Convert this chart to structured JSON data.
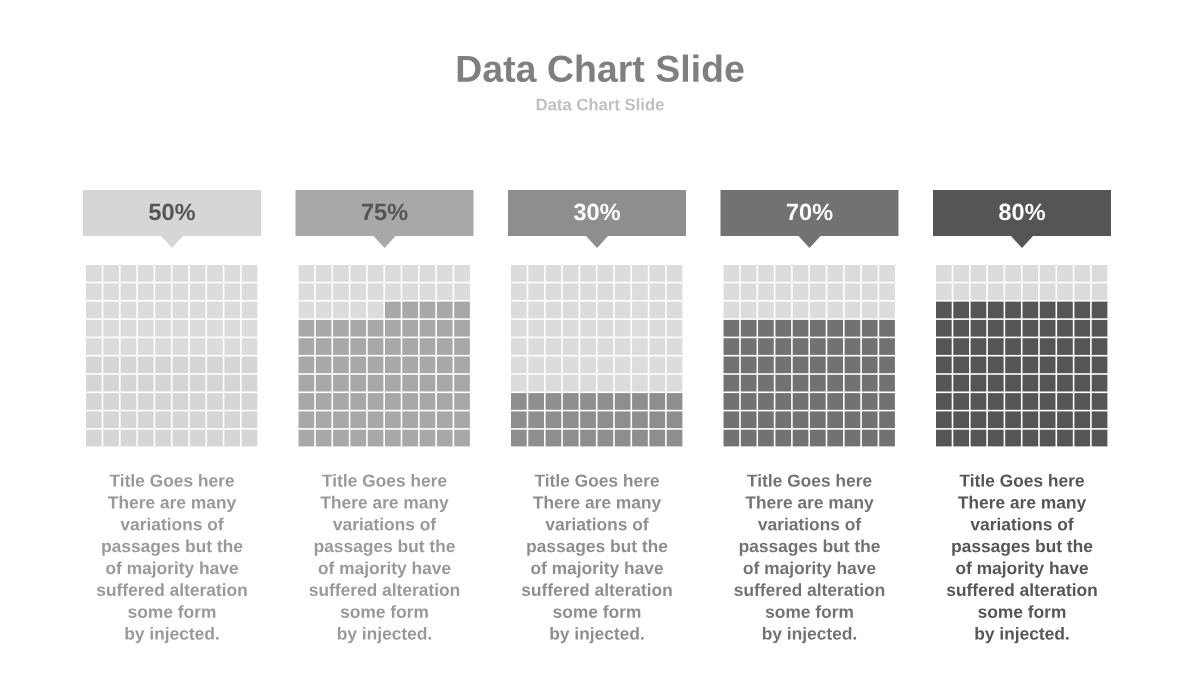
{
  "chart_data": {
    "type": "other",
    "title": "Data Chart Slide",
    "subtitle": "Data Chart Slide",
    "categories": [
      null,
      null,
      null,
      null,
      null
    ],
    "values": [
      50,
      75,
      30,
      70,
      80
    ],
    "value_labels": [
      "50%",
      "75%",
      "30%",
      "70%",
      "80%"
    ],
    "colors": [
      "#d6d6d6",
      "#a8a8a8",
      "#8e8e8e",
      "#727272",
      "#555555"
    ],
    "annotations": [
      "Title Goes here\nThere are many\nvariations of\npassages but the\nof majority have\nsuffered alteration\nsome form\nby injected.",
      "Title Goes here\nThere are many\nvariations of\npassages but the\nof majority have\nsuffered alteration\nsome form\nby injected.",
      "Title Goes here\nThere are many\nvariations of\npassages but the\nof majority have\nsuffered alteration\nsome form\nby injected.",
      "Title Goes here\nThere are many\nvariations of\npassages but the\nof majority have\nsuffered alteration\nsome form\nby injected.",
      "Title Goes here\nThere are many\nvariations of\npassages but the\nof majority have\nsuffered alteration\nsome form\nby injected."
    ]
  }
}
